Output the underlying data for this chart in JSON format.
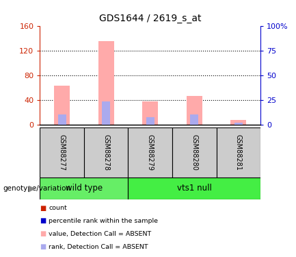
{
  "title": "GDS1644 / 2619_s_at",
  "samples": [
    "GSM88277",
    "GSM88278",
    "GSM88279",
    "GSM88280",
    "GSM88281"
  ],
  "pink_bars": [
    63,
    135,
    37,
    46,
    8
  ],
  "blue_bars": [
    17,
    38,
    12,
    17,
    3
  ],
  "ylim_left": [
    0,
    160
  ],
  "ylim_right": [
    0,
    100
  ],
  "yticks_left": [
    0,
    40,
    80,
    120,
    160
  ],
  "yticks_right": [
    0,
    25,
    50,
    75,
    100
  ],
  "ytick_labels_left": [
    "0",
    "40",
    "80",
    "120",
    "160"
  ],
  "ytick_labels_right": [
    "0",
    "25",
    "50",
    "75",
    "100%"
  ],
  "groups": [
    {
      "label": "wild type",
      "span": [
        0,
        2
      ],
      "color": "#66ee66"
    },
    {
      "label": "vts1 null",
      "span": [
        2,
        5
      ],
      "color": "#44ee44"
    }
  ],
  "group_label": "genotype/variation",
  "legend_items": [
    {
      "color": "#cc0000",
      "label": "count"
    },
    {
      "color": "#0000cc",
      "label": "percentile rank within the sample"
    },
    {
      "color": "#ffaabb",
      "label": "value, Detection Call = ABSENT"
    },
    {
      "color": "#aabbff",
      "label": "rank, Detection Call = ABSENT"
    }
  ],
  "pink_color": "#ffaaaa",
  "blue_color": "#aaaaee",
  "bar_width": 0.35,
  "background_color": "#ffffff",
  "plot_bg": "#ffffff",
  "left_axis_color": "#cc2200",
  "right_axis_color": "#0000cc",
  "grid_vals": [
    40,
    80,
    120
  ]
}
